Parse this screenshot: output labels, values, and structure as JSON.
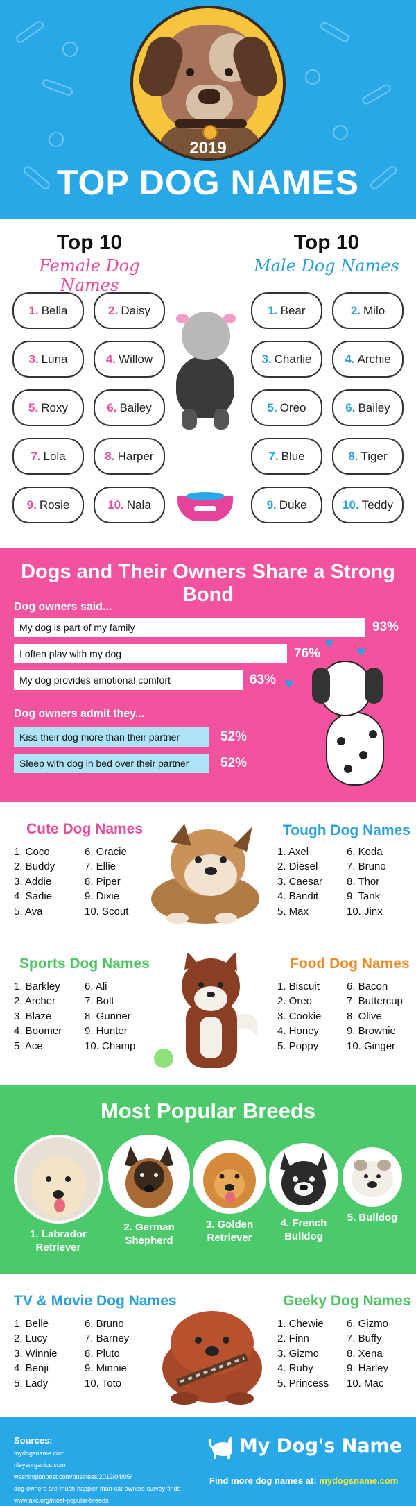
{
  "hero": {
    "year": "2019",
    "title": "TOP DOG NAMES"
  },
  "top10": {
    "female": {
      "heading": "Top 10",
      "subheading": "Female Dog Names",
      "names": [
        {
          "n": "1.",
          "name": "Bella"
        },
        {
          "n": "2.",
          "name": "Daisy"
        },
        {
          "n": "3.",
          "name": "Luna"
        },
        {
          "n": "4.",
          "name": "Willow"
        },
        {
          "n": "5.",
          "name": "Roxy"
        },
        {
          "n": "6.",
          "name": "Bailey"
        },
        {
          "n": "7.",
          "name": "Lola"
        },
        {
          "n": "8.",
          "name": "Harper"
        },
        {
          "n": "9.",
          "name": "Rosie"
        },
        {
          "n": "10.",
          "name": "Nala"
        }
      ]
    },
    "male": {
      "heading": "Top 10",
      "subheading": "Male Dog Names",
      "names": [
        {
          "n": "1.",
          "name": "Bear"
        },
        {
          "n": "2.",
          "name": "Milo"
        },
        {
          "n": "3.",
          "name": "Charlie"
        },
        {
          "n": "4.",
          "name": "Archie"
        },
        {
          "n": "5.",
          "name": "Oreo"
        },
        {
          "n": "6.",
          "name": "Bailey"
        },
        {
          "n": "7.",
          "name": "Blue"
        },
        {
          "n": "8.",
          "name": "Tiger"
        },
        {
          "n": "9.",
          "name": "Duke"
        },
        {
          "n": "10.",
          "name": "Teddy"
        }
      ]
    }
  },
  "bond": {
    "title": "Dogs and Their Owners Share a Strong Bond",
    "said_label": "Dog owners said...",
    "said": [
      {
        "text": "My dog is part of my family",
        "value": 93,
        "pct": "93%"
      },
      {
        "text": "I often play with my dog",
        "value": 76,
        "pct": "76%"
      },
      {
        "text": "My dog provides emotional comfort",
        "value": 63,
        "pct": "63%"
      }
    ],
    "admit_label": "Dog owners admit they...",
    "admit": [
      {
        "text": "Kiss their dog more than their partner",
        "value": 52,
        "pct": "52%"
      },
      {
        "text": "Sleep with dog in bed over their partner",
        "value": 52,
        "pct": "52%"
      }
    ]
  },
  "lists": {
    "cute": {
      "title": "Cute Dog Names",
      "color": "#e64e9c",
      "col1": [
        "1. Coco",
        "2. Buddy",
        "3. Addie",
        "4. Sadie",
        "5. Ava"
      ],
      "col2": [
        "6. Gracie",
        "7. Ellie",
        "8. Piper",
        "9. Dixie",
        "10. Scout"
      ]
    },
    "tough": {
      "title": "Tough Dog Names",
      "color": "#2ba0dc",
      "col1": [
        "1. Axel",
        "2. Diesel",
        "3. Caesar",
        "4. Bandit",
        "5. Max"
      ],
      "col2": [
        "6. Koda",
        "7. Bruno",
        "8. Thor",
        "9. Tank",
        "10. Jinx"
      ]
    },
    "sports": {
      "title": "Sports Dog Names",
      "color": "#4cc460",
      "col1": [
        "1. Barkley",
        "2. Archer",
        "3. Blaze",
        "4. Boomer",
        "5. Ace"
      ],
      "col2": [
        "6. Ali",
        "7. Bolt",
        "8. Gunner",
        "9. Hunter",
        "10. Champ"
      ]
    },
    "food": {
      "title": "Food Dog Names",
      "color": "#f08a24",
      "col1": [
        "1. Biscuit",
        "2. Oreo",
        "3. Cookie",
        "4. Honey",
        "5. Poppy"
      ],
      "col2": [
        "6. Bacon",
        "7. Buttercup",
        "8. Olive",
        "9. Brownie",
        "10. Ginger"
      ]
    }
  },
  "breeds": {
    "title": "Most Popular Breeds",
    "items": [
      {
        "line1": "1. Labrador",
        "line2": "Retriever"
      },
      {
        "line1": "2. German",
        "line2": "Shepherd"
      },
      {
        "line1": "3. Golden",
        "line2": "Retriever"
      },
      {
        "line1": "4. French",
        "line2": "Bulldog"
      },
      {
        "line1": "5. Bulldog",
        "line2": ""
      }
    ]
  },
  "tv": {
    "movie": {
      "title": "TV & Movie Dog Names",
      "color": "#2ba0dc",
      "col1": [
        "1. Belle",
        "2. Lucy",
        "3. Winnie",
        "4. Benji",
        "5. Lady"
      ],
      "col2": [
        "6. Bruno",
        "7. Barney",
        "8. Pluto",
        "9. Minnie",
        "10. Toto"
      ]
    },
    "geeky": {
      "title": "Geeky Dog Names",
      "color": "#4cc460",
      "col1": [
        "1. Chewie",
        "2. Finn",
        "3. Gizmo",
        "4. Ruby",
        "5. Princess"
      ],
      "col2": [
        "6. Gizmo",
        "7. Buffy",
        "8. Xena",
        "9. Harley",
        "10. Mac"
      ]
    }
  },
  "footer": {
    "sources_label": "Sources:",
    "sources": [
      "mydogsname.com",
      "rileysorganics.com",
      "washingtonpost.com/business/2019/04/05/",
      "dog-owners-are-much-happier-than-cat-owners-survey-finds",
      "www.akc.org/most-popular-breeds"
    ],
    "brand": "My Dog's Name",
    "find_text": "Find more dog names at: ",
    "find_link": "mydogsname.com"
  }
}
